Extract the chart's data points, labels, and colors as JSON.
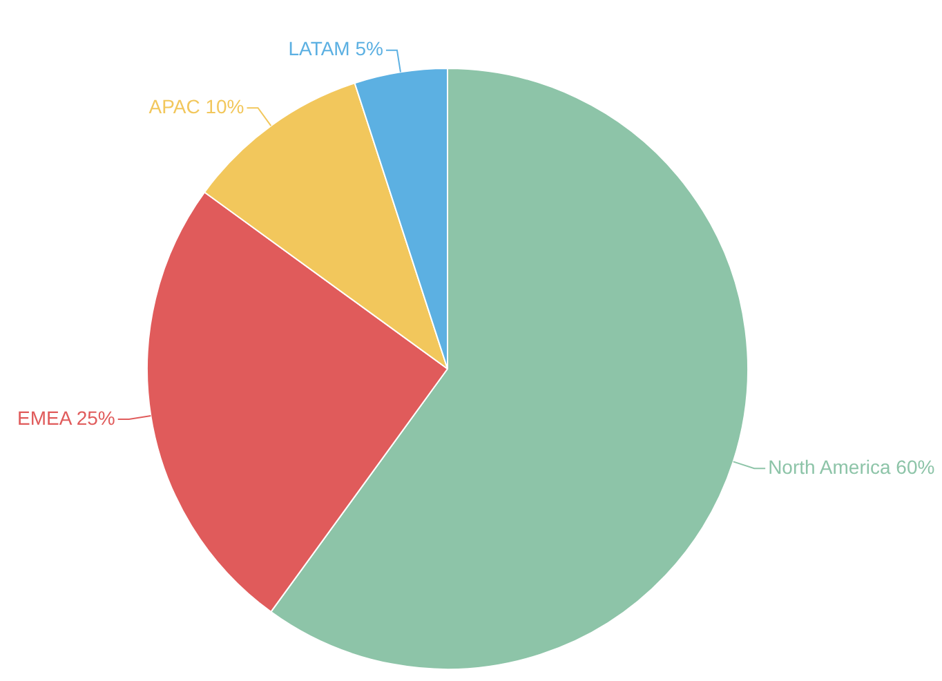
{
  "chart_data": {
    "type": "pie",
    "categories": [
      "North America",
      "EMEA",
      "APAC",
      "LATAM"
    ],
    "values": [
      60,
      25,
      10,
      5
    ],
    "colors": [
      "#8dc4a8",
      "#e05b5b",
      "#f2c75c",
      "#5cb0e2"
    ],
    "value_labels": [
      "60%",
      "25%",
      "10%",
      "5%"
    ],
    "legend": false
  }
}
